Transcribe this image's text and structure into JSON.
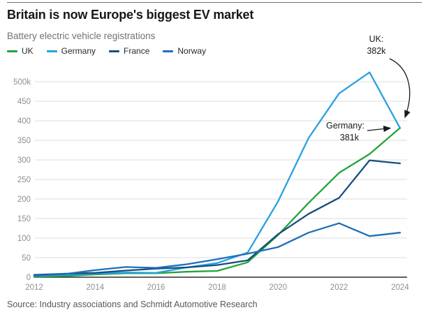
{
  "header": {
    "title": "Britain is now Europe's biggest EV market",
    "subtitle": "Battery electric vehicle registrations"
  },
  "source": "Source: Industry associations and Schmidt Automotive Research",
  "colors": {
    "uk_green": "#23a43a",
    "germany_blue": "#29a0e0",
    "france_navy": "#164e80",
    "norway_blue": "#1d6fba",
    "gridline": "#dcdcdc",
    "axis_line": "#2c2c2c",
    "tick_text": "#8b8f92",
    "annotation_text": "#17191b"
  },
  "chart_data": {
    "type": "line",
    "title": "Britain is now Europe's biggest EV market",
    "subtitle": "Battery electric vehicle registrations",
    "unit": "thousands of registrations per year",
    "x": [
      2012,
      2013,
      2014,
      2015,
      2016,
      2017,
      2018,
      2019,
      2020,
      2021,
      2022,
      2023,
      2024
    ],
    "x_tick_labels": [
      "2012",
      "2014",
      "2016",
      "2018",
      "2020",
      "2022",
      "2024"
    ],
    "y_ticks": [
      0,
      50,
      100,
      150,
      200,
      250,
      300,
      350,
      400,
      450,
      500
    ],
    "y_tick_labels": [
      "0",
      "50",
      "100",
      "150",
      "200",
      "250",
      "300",
      "350",
      "400",
      "450",
      "500k"
    ],
    "ylim": [
      0,
      500
    ],
    "grid": "horizontal",
    "legend_position": "top-left",
    "series": [
      {
        "name": "UK",
        "color": "#23a43a",
        "values": [
          1,
          3,
          7,
          10,
          10,
          14,
          16,
          38,
          108,
          190,
          267,
          315,
          382
        ]
      },
      {
        "name": "Germany",
        "color": "#29a0e0",
        "values": [
          3,
          6,
          9,
          12,
          11,
          25,
          36,
          63,
          194,
          356,
          470,
          524,
          381
        ]
      },
      {
        "name": "France",
        "color": "#164e80",
        "values": [
          6,
          9,
          11,
          17,
          22,
          25,
          31,
          43,
          110,
          162,
          203,
          299,
          291
        ]
      },
      {
        "name": "Norway",
        "color": "#1d6fba",
        "values": [
          4,
          8,
          18,
          26,
          24,
          33,
          46,
          60,
          77,
          114,
          138,
          105,
          114
        ]
      }
    ],
    "annotations": [
      {
        "target_series": "UK",
        "target_x": 2024,
        "value_label": "382k",
        "lines": [
          "UK:",
          "382k"
        ]
      },
      {
        "target_series": "Germany",
        "target_x": 2024,
        "value_label": "381k",
        "lines": [
          "Germany:",
          "381k"
        ]
      }
    ]
  }
}
